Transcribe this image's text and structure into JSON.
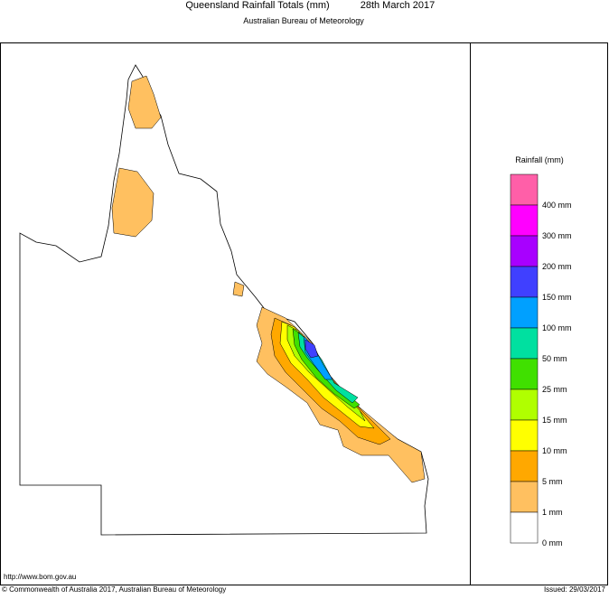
{
  "header": {
    "title": "Queensland Rainfall Totals (mm)",
    "date": "28th March 2017",
    "subtitle": "Australian Bureau of Meteorology"
  },
  "legend": {
    "title": "Rainfall (mm)",
    "colors": [
      "#ff5fa8",
      "#ff00ff",
      "#a800ff",
      "#4040ff",
      "#00a0ff",
      "#00e0a0",
      "#40e000",
      "#b0ff00",
      "#ffff00",
      "#ffa800",
      "#ffc060",
      "#ffffff"
    ],
    "labels": [
      "400 mm",
      "300 mm",
      "200 mm",
      "150 mm",
      "100 mm",
      "50 mm",
      "25 mm",
      "15 mm",
      "10 mm",
      "5 mm",
      "1 mm",
      "0 mm"
    ]
  },
  "footer": {
    "url": "http://www.bom.gov.au",
    "copyright": "© Commonwealth of Australia 2017, Australian Bureau of Meteorology",
    "issued": "Issued: 29/03/2017"
  }
}
